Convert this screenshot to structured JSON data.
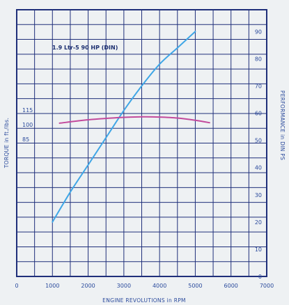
{
  "chart_data": {
    "type": "line",
    "annotation": "1.9 Ltr-5 90 HP (DIN)",
    "xlabel": "ENGINE REVOLUTIONS in RPM",
    "ylabel_left": "TORQUE in ft./lbs.",
    "ylabel_right": "PERFORMANCE in DIN PS",
    "x_ticks": [
      "0",
      "1000",
      "2000",
      "3000",
      "4000",
      "5000",
      "6000",
      "7000"
    ],
    "y_right_ticks": [
      "0",
      "10",
      "20",
      "30",
      "40",
      "50",
      "60",
      "70",
      "80",
      "90"
    ],
    "y_left_ticks": [
      "115",
      "100",
      "85"
    ],
    "xlim": [
      0,
      7000
    ],
    "ylim_right": [
      0,
      98
    ],
    "ylim_left": [
      85,
      115
    ],
    "grid": true,
    "colors": {
      "performance": "#3fa6e6",
      "torque": "#c24a9c",
      "frame": "#1f2f7a",
      "grid": "#1f2f7a",
      "text": "#2a4a9c"
    },
    "series": [
      {
        "axis": "right",
        "x": [
          1000,
          1500,
          2000,
          2500,
          3000,
          3500,
          4000,
          4500,
          5000
        ],
        "y": [
          20,
          31,
          41,
          51,
          61,
          70,
          78,
          84,
          90
        ]
      },
      {
        "axis": "left",
        "x": [
          1200,
          2000,
          3000,
          3500,
          4000,
          4500,
          5000,
          5400
        ],
        "y": [
          101.5,
          105,
          107.5,
          108,
          107.8,
          106.8,
          104.5,
          102
        ]
      }
    ]
  }
}
